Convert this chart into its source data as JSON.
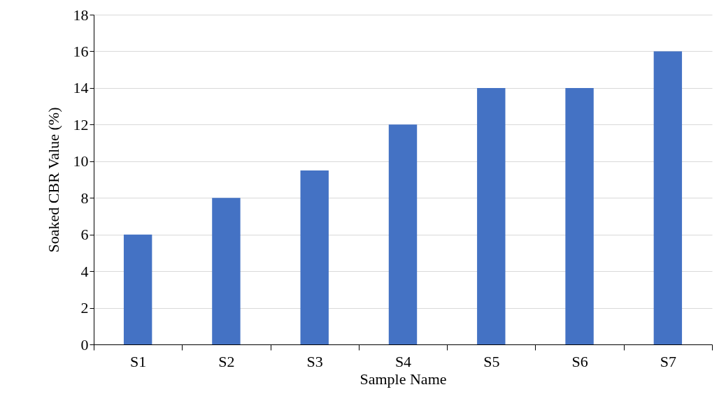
{
  "chart_data": {
    "type": "bar",
    "xlabel": "Sample Name",
    "ylabel": "Soaked CBR Value (%)",
    "categories": [
      "S1",
      "S2",
      "S3",
      "S4",
      "S5",
      "S6",
      "S7"
    ],
    "values": [
      6,
      8,
      9.5,
      12,
      14,
      14,
      16
    ],
    "color": "#4472c4",
    "ylim": [
      0,
      18
    ],
    "yticks": [
      0,
      2,
      4,
      6,
      8,
      10,
      12,
      14,
      16,
      18
    ],
    "grid": "y"
  }
}
